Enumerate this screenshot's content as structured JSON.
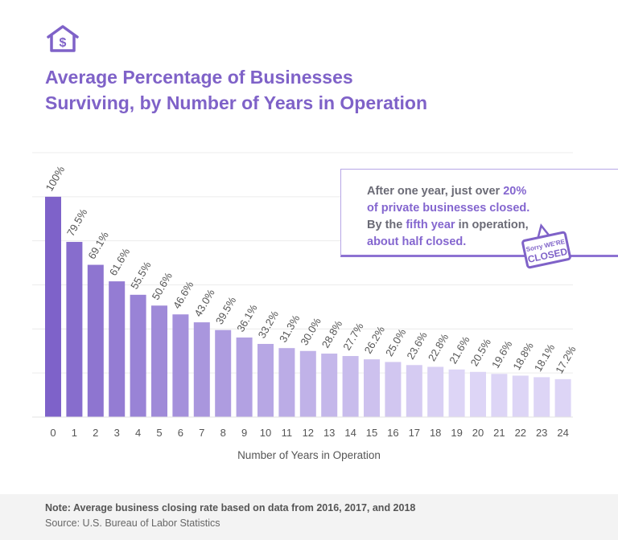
{
  "title_lines": [
    "Average Percentage of Businesses",
    "Surviving, by Number of Years in Operation"
  ],
  "icon": "house-dollar-icon",
  "callout": {
    "parts": [
      {
        "text": "After one year, just over ",
        "highlight": false
      },
      {
        "text": "20%",
        "highlight": true
      },
      {
        "text": "of private businesses closed.",
        "highlight": true
      },
      {
        "text": "By the ",
        "highlight": false
      },
      {
        "text": "fifth year",
        "highlight": true
      },
      {
        "text": " in operation,",
        "highlight": false
      },
      {
        "text": "about half closed.",
        "highlight": true
      }
    ],
    "sign_icon": "closed-sign-icon",
    "sign_text_top": "Sorry WE'RE",
    "sign_text_bottom": "CLOSED"
  },
  "footer": {
    "note": "Note: Average business closing rate based on data from 2016, 2017, and 2018",
    "source": "Source: U.S. Bureau of Labor Statistics"
  },
  "colors": {
    "accent": "#7f62c8",
    "bar_dark": "#7e62c9",
    "bar_light": "#ddd5f6",
    "grid": "#ececec"
  },
  "chart_data": {
    "type": "bar",
    "title": "Average Percentage of Businesses Surviving, by Number of Years in Operation",
    "xlabel": "Number of Years in Operation",
    "ylabel": "",
    "categories": [
      "0",
      "1",
      "2",
      "3",
      "4",
      "5",
      "6",
      "7",
      "8",
      "9",
      "10",
      "11",
      "12",
      "13",
      "14",
      "15",
      "16",
      "17",
      "18",
      "19",
      "20",
      "21",
      "22",
      "23",
      "24"
    ],
    "values": [
      100,
      79.5,
      69.1,
      61.6,
      55.5,
      50.6,
      46.6,
      43.0,
      39.5,
      36.1,
      33.2,
      31.3,
      30.0,
      28.8,
      27.7,
      26.2,
      25.0,
      23.6,
      22.8,
      21.6,
      20.5,
      19.6,
      18.8,
      18.1,
      17.2
    ],
    "data_labels": [
      "100%",
      "79.5%",
      "69.1%",
      "61.6%",
      "55.5%",
      "50.6%",
      "46.6%",
      "43.0%",
      "39.5%",
      "36.1%",
      "33.2%",
      "31.3%",
      "30.0%",
      "28.8%",
      "27.7%",
      "26.2%",
      "25.0%",
      "23.6%",
      "22.8%",
      "21.6%",
      "20.5%",
      "19.6%",
      "18.8%",
      "18.1%",
      "17.2%"
    ],
    "ylim": [
      0,
      120
    ],
    "grid": true,
    "y_tick_labels_shown": false,
    "legend": "none"
  }
}
